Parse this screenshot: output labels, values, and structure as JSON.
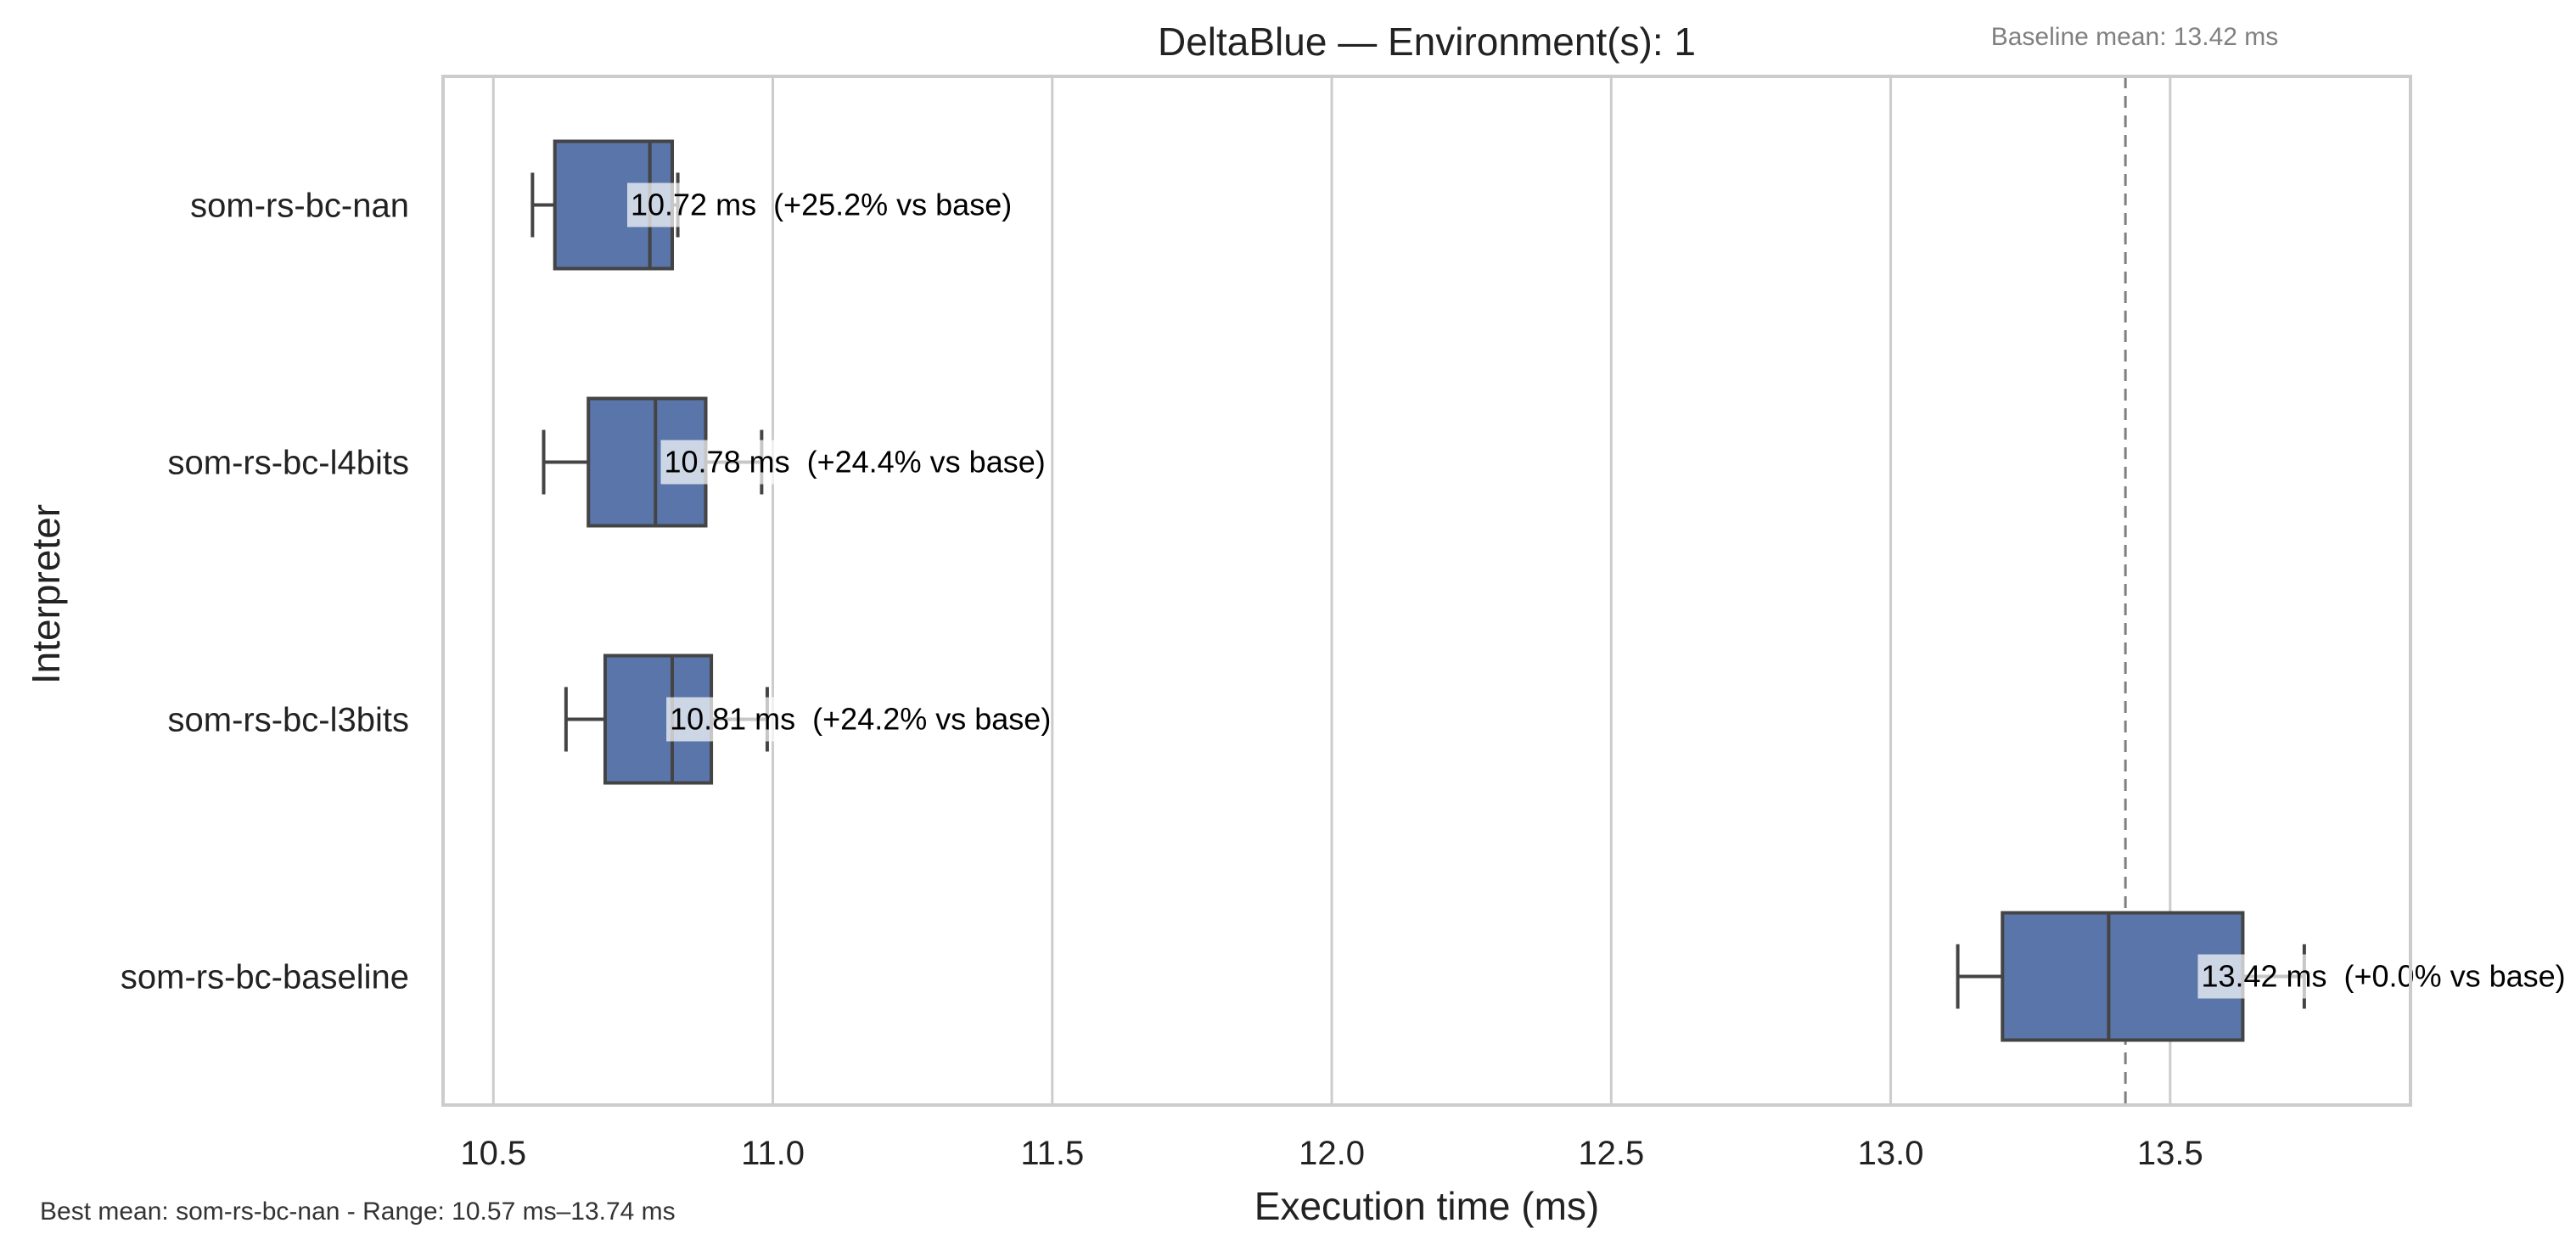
{
  "chart_data": {
    "type": "boxplot",
    "orientation": "horizontal",
    "title": "DeltaBlue — Environment(s): 1",
    "xlabel": "Execution time (ms)",
    "ylabel": "Interpreter",
    "xlim": [
      10.41,
      13.93
    ],
    "xticks": [
      "10.5",
      "11.0",
      "11.5",
      "12.0",
      "12.5",
      "13.0",
      "13.5"
    ],
    "xtick_values": [
      10.5,
      11.0,
      11.5,
      12.0,
      12.5,
      13.0,
      13.5
    ],
    "grid": "vertical",
    "color": "#5975a9",
    "baseline": {
      "value": 13.42,
      "label": "Baseline mean: 13.42 ms"
    },
    "categories": [
      "som-rs-bc-nan",
      "som-rs-bc-l4bits",
      "som-rs-bc-l3bits",
      "som-rs-bc-baseline"
    ],
    "series": [
      {
        "label": "som-rs-bc-nan",
        "whisker_low": 10.57,
        "q1": 10.61,
        "median": 10.78,
        "q3": 10.82,
        "whisker_high": 10.83,
        "mean": 10.72,
        "annotation_value": "10.72 ms",
        "annotation_delta": "(+25.2% vs base)"
      },
      {
        "label": "som-rs-bc-l4bits",
        "whisker_low": 10.59,
        "q1": 10.67,
        "median": 10.79,
        "q3": 10.88,
        "whisker_high": 10.98,
        "mean": 10.78,
        "annotation_value": "10.78 ms",
        "annotation_delta": "(+24.4% vs base)"
      },
      {
        "label": "som-rs-bc-l3bits",
        "whisker_low": 10.63,
        "q1": 10.7,
        "median": 10.82,
        "q3": 10.89,
        "whisker_high": 10.99,
        "mean": 10.81,
        "annotation_value": "10.81 ms",
        "annotation_delta": "(+24.2% vs base)"
      },
      {
        "label": "som-rs-bc-baseline",
        "whisker_low": 13.12,
        "q1": 13.2,
        "median": 13.39,
        "q3": 13.63,
        "whisker_high": 13.74,
        "mean": 13.42,
        "annotation_value": "13.42 ms",
        "annotation_delta": "(+0.0% vs base)"
      }
    ]
  },
  "footer": "Best mean: som-rs-bc-nan - Range: 10.57 ms–13.74 ms"
}
